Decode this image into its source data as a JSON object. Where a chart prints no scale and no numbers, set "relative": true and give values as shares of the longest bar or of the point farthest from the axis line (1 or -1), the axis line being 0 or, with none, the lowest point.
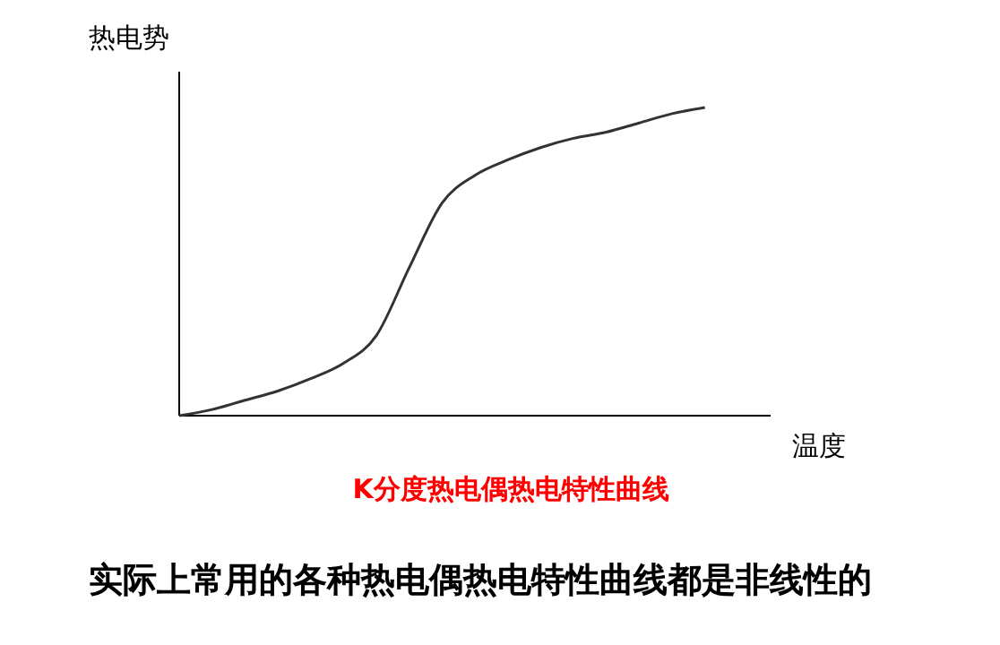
{
  "chart_data": {
    "type": "line",
    "relative": true,
    "title": "K分度热电偶热电特性曲线",
    "xlabel": "温度",
    "ylabel": "热电势",
    "annotations": [
      "实际上常用的各种热电偶热电特性曲线都是非线性的"
    ],
    "categories": [
      null,
      null,
      null,
      null,
      null,
      null,
      null,
      null,
      null,
      null,
      null,
      null,
      null,
      null,
      null,
      null,
      null,
      null,
      null
    ],
    "values": [
      0,
      0.02,
      0.05,
      0.08,
      0.12,
      0.17,
      0.26,
      0.48,
      0.69,
      0.78,
      0.83,
      0.87,
      0.9,
      0.92,
      0.95,
      0.98,
      1,
      null,
      null
    ],
    "color": "#333333"
  }
}
